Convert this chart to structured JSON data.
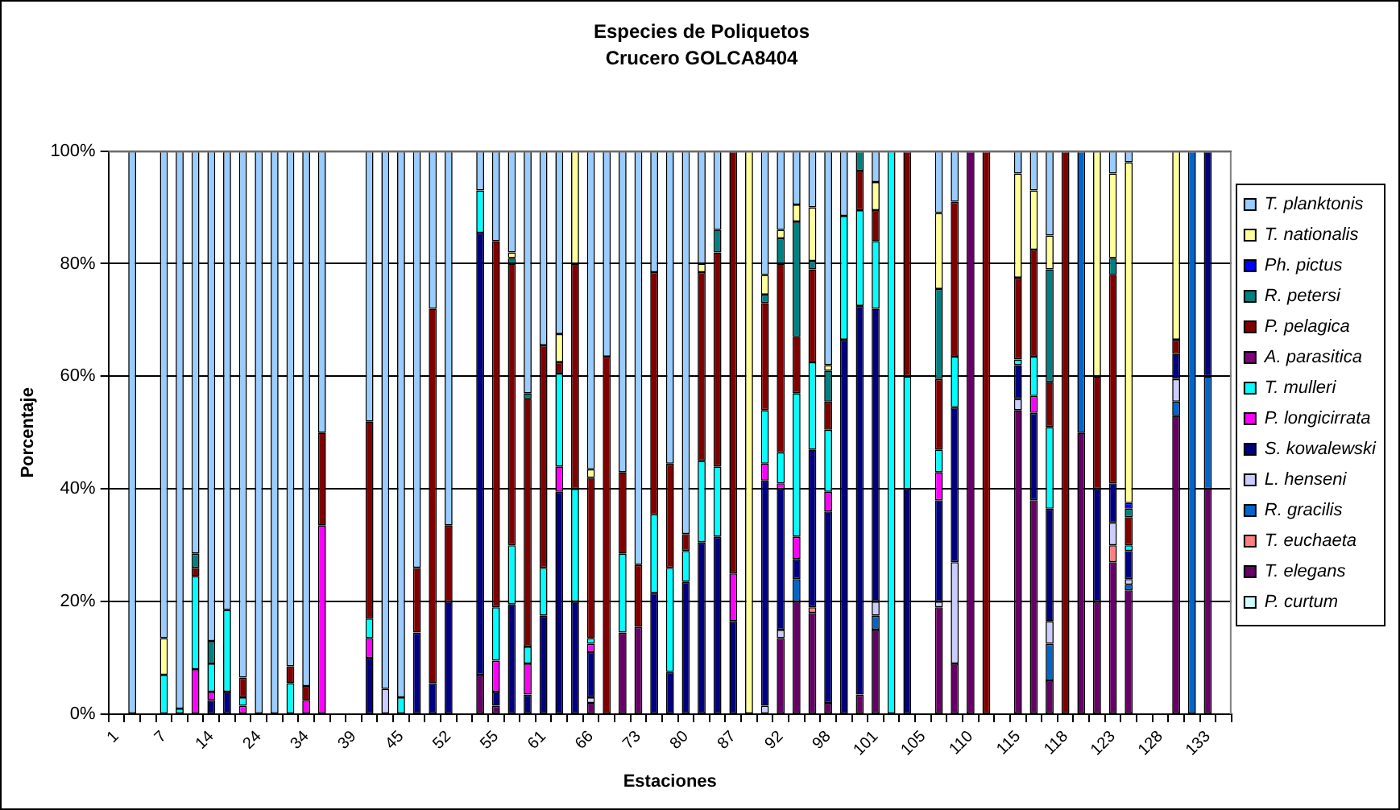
{
  "chart_data": {
    "type": "bar",
    "title": "Especies de Poliquetos",
    "subtitle": "Crucero GOLCA8404",
    "xlabel": "Estaciones",
    "ylabel": "Porcentaje",
    "categories": [
      "1",
      null,
      null,
      "7",
      null,
      null,
      "14",
      null,
      null,
      "24",
      null,
      null,
      "34",
      null,
      null,
      "39",
      null,
      null,
      "45",
      null,
      null,
      "52",
      null,
      null,
      "55",
      null,
      null,
      "61",
      null,
      null,
      "66",
      null,
      null,
      "73",
      null,
      null,
      "80",
      null,
      null,
      "87",
      null,
      null,
      "92",
      null,
      null,
      "98",
      null,
      null,
      "101",
      null,
      null,
      "105",
      null,
      null,
      "110",
      null,
      null,
      "115",
      null,
      null,
      "118",
      null,
      null,
      "123",
      null,
      null,
      "128",
      null,
      null,
      "133",
      null
    ],
    "stacked": true,
    "ylim": [
      0,
      100
    ],
    "yticks": [
      {
        "value": 0,
        "label": "0%"
      },
      {
        "value": 20,
        "label": "20%"
      },
      {
        "value": 40,
        "label": "40%"
      },
      {
        "value": 60,
        "label": "60%"
      },
      {
        "value": 80,
        "label": "80%"
      },
      {
        "value": 100,
        "label": "100%"
      }
    ],
    "grid": "y",
    "legend": "right",
    "series": [
      {
        "name": "P. curtum",
        "color": "#ccffff",
        "values": [
          null,
          null,
          null,
          null,
          null,
          null,
          null,
          null,
          null,
          null,
          null,
          null,
          null,
          null,
          null,
          null,
          null,
          null,
          null,
          null,
          null,
          null,
          null,
          null,
          null,
          null,
          null,
          null,
          null,
          null,
          null,
          null,
          null,
          null,
          null,
          null,
          null,
          null,
          null,
          null,
          null,
          null,
          null,
          null,
          null,
          null,
          null,
          null,
          null,
          null,
          null,
          null,
          null,
          null,
          null,
          null,
          null,
          null,
          null,
          null,
          null,
          null,
          null,
          null,
          null,
          null,
          null,
          null,
          null,
          null,
          null
        ]
      },
      {
        "name": "T. elegans",
        "color": "#660066",
        "values": [
          null,
          null,
          null,
          null,
          null,
          null,
          null,
          null,
          null,
          null,
          null,
          null,
          null,
          null,
          null,
          null,
          null,
          null,
          null,
          null,
          null,
          null,
          null,
          7,
          1.5,
          null,
          null,
          null,
          null,
          null,
          2,
          null,
          14.5,
          15.5,
          null,
          null,
          null,
          null,
          null,
          null,
          null,
          null,
          13.5,
          20,
          18,
          2,
          null,
          3.5,
          15,
          null,
          null,
          null,
          19,
          9,
          100,
          null,
          null,
          54,
          38,
          6,
          null,
          50,
          20,
          27,
          22,
          null,
          null,
          53,
          null,
          40,
          null
        ]
      },
      {
        "name": "T. euchaeta",
        "color": "#ff8080",
        "values": [
          null,
          null,
          null,
          null,
          null,
          null,
          null,
          null,
          null,
          null,
          null,
          null,
          null,
          null,
          null,
          null,
          null,
          null,
          null,
          null,
          null,
          null,
          null,
          null,
          null,
          null,
          null,
          null,
          null,
          null,
          null,
          null,
          null,
          null,
          null,
          null,
          null,
          null,
          null,
          null,
          null,
          null,
          null,
          null,
          1,
          null,
          null,
          null,
          null,
          null,
          null,
          null,
          null,
          null,
          null,
          null,
          null,
          null,
          null,
          null,
          null,
          null,
          null,
          3,
          null,
          null,
          null,
          null,
          null,
          null,
          null
        ]
      },
      {
        "name": "R. gracilis",
        "color": "#0066cc",
        "values": [
          null,
          null,
          null,
          null,
          null,
          null,
          null,
          null,
          null,
          null,
          null,
          null,
          null,
          null,
          null,
          null,
          null,
          null,
          null,
          null,
          null,
          null,
          null,
          null,
          null,
          null,
          null,
          null,
          null,
          null,
          null,
          null,
          null,
          null,
          null,
          null,
          null,
          null,
          null,
          null,
          null,
          null,
          null,
          4,
          null,
          null,
          null,
          null,
          2.5,
          null,
          null,
          null,
          null,
          null,
          null,
          null,
          null,
          null,
          null,
          6.5,
          null,
          50,
          null,
          null,
          1,
          null,
          null,
          2.5,
          100,
          20,
          null
        ]
      },
      {
        "name": "L. henseni",
        "color": "#ccccff",
        "values": [
          null,
          null,
          null,
          null,
          null,
          null,
          null,
          null,
          null,
          null,
          null,
          null,
          null,
          null,
          null,
          null,
          null,
          4.5,
          null,
          null,
          null,
          null,
          null,
          null,
          null,
          null,
          null,
          null,
          null,
          null,
          1,
          null,
          null,
          null,
          null,
          null,
          null,
          null,
          null,
          null,
          null,
          1.5,
          1.5,
          null,
          null,
          null,
          null,
          null,
          2.5,
          null,
          null,
          null,
          1,
          18,
          null,
          null,
          null,
          2,
          null,
          4,
          null,
          null,
          null,
          4,
          1,
          null,
          null,
          4,
          null,
          null,
          null
        ]
      },
      {
        "name": "S. kowalewski",
        "color": "#000080",
        "values": [
          null,
          null,
          null,
          null,
          null,
          null,
          2.5,
          4,
          null,
          null,
          null,
          null,
          null,
          null,
          null,
          null,
          10,
          null,
          null,
          14.5,
          5.5,
          20,
          null,
          78.5,
          2.5,
          19.5,
          3.5,
          17.5,
          39.5,
          20,
          8,
          null,
          null,
          null,
          21.5,
          7.5,
          23.5,
          30.5,
          31.5,
          16.5,
          null,
          40,
          25,
          3.5,
          28,
          34,
          66.5,
          69,
          52,
          null,
          40,
          null,
          18,
          27.5,
          null,
          null,
          null,
          6,
          15.5,
          20,
          null,
          null,
          20,
          7,
          5,
          null,
          null,
          4.5,
          null,
          40,
          null
        ]
      },
      {
        "name": "P. longicirrata",
        "color": "#ff00ff",
        "values": [
          null,
          null,
          null,
          null,
          null,
          8,
          1.5,
          null,
          1.5,
          null,
          null,
          null,
          2.5,
          33.5,
          null,
          null,
          3.5,
          null,
          null,
          null,
          null,
          null,
          null,
          null,
          5.5,
          null,
          5.5,
          null,
          4.5,
          null,
          1.5,
          null,
          null,
          null,
          null,
          null,
          null,
          null,
          null,
          8.5,
          null,
          3,
          1,
          4,
          null,
          3.5,
          null,
          null,
          null,
          null,
          null,
          null,
          5,
          null,
          null,
          null,
          null,
          null,
          3,
          null,
          null,
          null,
          null,
          null,
          null,
          null,
          null,
          null,
          null,
          null,
          null
        ]
      },
      {
        "name": "T. mulleri",
        "color": "#00ffff",
        "values": [
          null,
          null,
          null,
          7,
          1,
          16.5,
          5,
          14.5,
          1.5,
          null,
          null,
          5.5,
          null,
          null,
          null,
          null,
          3.5,
          null,
          3,
          null,
          null,
          null,
          null,
          7.5,
          9.5,
          10.5,
          3,
          8.5,
          16.5,
          20,
          1,
          null,
          14,
          null,
          14,
          18.5,
          5.5,
          14.5,
          12.5,
          null,
          null,
          9.5,
          5.5,
          25.5,
          15.5,
          11,
          22,
          17,
          12,
          100,
          20,
          null,
          4,
          9,
          null,
          null,
          null,
          1,
          7,
          14.5,
          null,
          null,
          null,
          null,
          1,
          null,
          null,
          null,
          null,
          null,
          null
        ]
      },
      {
        "name": "A. parasitica",
        "color": "#800080",
        "values": [
          null,
          null,
          null,
          null,
          null,
          null,
          null,
          null,
          null,
          null,
          null,
          null,
          null,
          null,
          null,
          null,
          null,
          null,
          null,
          null,
          null,
          null,
          null,
          null,
          null,
          null,
          null,
          null,
          null,
          null,
          null,
          null,
          null,
          null,
          null,
          null,
          null,
          null,
          null,
          null,
          null,
          null,
          null,
          null,
          null,
          null,
          null,
          null,
          null,
          null,
          null,
          null,
          null,
          null,
          null,
          null,
          null,
          null,
          null,
          null,
          null,
          null,
          null,
          null,
          null,
          null,
          null,
          null,
          null,
          null,
          null
        ]
      },
      {
        "name": "P. pelagica",
        "color": "#800000",
        "values": [
          null,
          null,
          null,
          null,
          null,
          1.5,
          null,
          null,
          3.5,
          null,
          null,
          3,
          2.5,
          16.5,
          null,
          null,
          35,
          null,
          null,
          11.5,
          66.5,
          13.5,
          null,
          null,
          65,
          50,
          44,
          39.5,
          2,
          40,
          28.5,
          63.5,
          14.5,
          11,
          43,
          18.5,
          3,
          33.5,
          38,
          75,
          null,
          19,
          33.5,
          10,
          16.5,
          5,
          null,
          7,
          5.5,
          null,
          40,
          null,
          12.5,
          27.5,
          null,
          100,
          null,
          14.5,
          19,
          8,
          100,
          null,
          20,
          37,
          5,
          null,
          null,
          2.5,
          null,
          null,
          null
        ]
      },
      {
        "name": "R. petersi",
        "color": "#008080",
        "values": [
          null,
          null,
          null,
          null,
          null,
          2.5,
          4,
          null,
          null,
          null,
          null,
          null,
          null,
          null,
          null,
          null,
          null,
          null,
          null,
          null,
          null,
          null,
          null,
          null,
          null,
          1,
          1,
          null,
          null,
          null,
          null,
          null,
          null,
          null,
          null,
          null,
          null,
          null,
          4,
          null,
          null,
          1.5,
          4.5,
          20.5,
          1.5,
          5.5,
          null,
          3.5,
          null,
          null,
          null,
          null,
          16,
          null,
          null,
          null,
          null,
          null,
          null,
          20,
          null,
          null,
          null,
          3,
          1.5,
          null,
          null,
          null,
          null,
          null,
          null
        ]
      },
      {
        "name": "Ph. pictus",
        "color": "#0000ff",
        "values": [
          null,
          null,
          null,
          null,
          null,
          null,
          null,
          null,
          null,
          null,
          null,
          null,
          null,
          null,
          null,
          null,
          null,
          null,
          null,
          null,
          null,
          null,
          null,
          null,
          null,
          null,
          null,
          null,
          null,
          null,
          null,
          null,
          null,
          null,
          null,
          null,
          null,
          null,
          null,
          null,
          null,
          null,
          null,
          null,
          null,
          null,
          null,
          null,
          null,
          null,
          null,
          null,
          null,
          null,
          null,
          null,
          null,
          null,
          null,
          null,
          null,
          null,
          null,
          null,
          1,
          null,
          null,
          null,
          null,
          null,
          null
        ]
      },
      {
        "name": "T. nationalis",
        "color": "#ffff99",
        "values": [
          null,
          null,
          null,
          6.5,
          null,
          null,
          null,
          null,
          null,
          null,
          null,
          null,
          null,
          null,
          null,
          null,
          null,
          null,
          null,
          null,
          null,
          null,
          null,
          null,
          null,
          1,
          null,
          null,
          5,
          20,
          1.5,
          null,
          null,
          null,
          null,
          null,
          null,
          1.5,
          null,
          null,
          100,
          3.5,
          1.5,
          3,
          9.5,
          1,
          null,
          null,
          5,
          null,
          null,
          null,
          13.5,
          null,
          null,
          null,
          null,
          18.5,
          10.5,
          6,
          null,
          null,
          40,
          15,
          60.5,
          null,
          null,
          33.5,
          null,
          null,
          null
        ]
      },
      {
        "name": "T. planktonis",
        "color": "#99ccff",
        "values": [
          null,
          100,
          null,
          86.5,
          99,
          71.5,
          87,
          81.5,
          93.5,
          100,
          100,
          91.5,
          95,
          50,
          null,
          null,
          48,
          95.5,
          97,
          74,
          28,
          66.5,
          null,
          7,
          16,
          18,
          43,
          34.5,
          32.5,
          null,
          56.5,
          36.5,
          57,
          73.5,
          21.5,
          55.5,
          68,
          20,
          14,
          null,
          null,
          22,
          14,
          9.5,
          10,
          38,
          11.5,
          null,
          5.5,
          null,
          null,
          null,
          11,
          9,
          null,
          null,
          null,
          4,
          7,
          15,
          null,
          null,
          null,
          4,
          2,
          null,
          null,
          null,
          null,
          null,
          null
        ]
      }
    ]
  }
}
